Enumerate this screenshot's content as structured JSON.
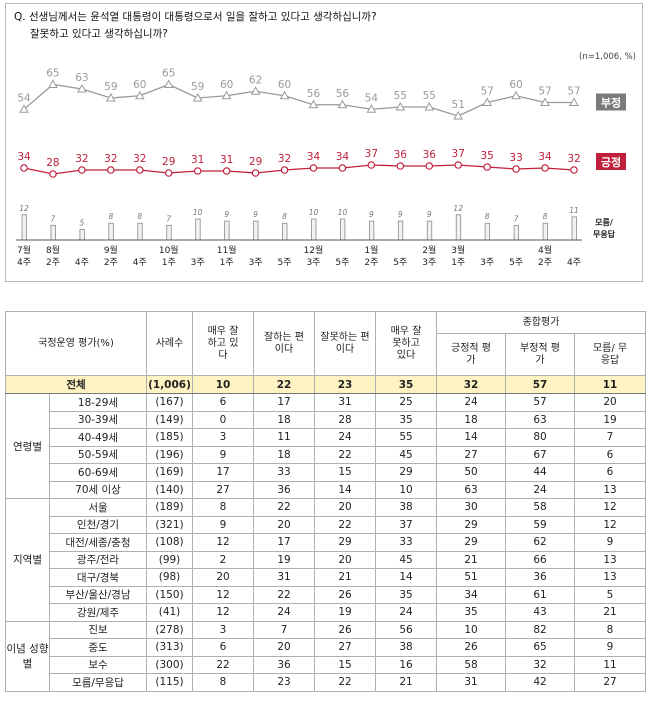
{
  "question": {
    "line1": "Q. 선생님께서는 윤석열 대통령이 대통령으로서 일을 잘하고 있다고 생각하십니까?",
    "line2": "잘못하고 있다고 생각하십니까?"
  },
  "sample_note": "(n=1,006, %)",
  "chart_data": {
    "type": "line",
    "categories": [
      [
        "7월",
        "4주"
      ],
      [
        "8월",
        "2주"
      ],
      [
        "",
        "4주"
      ],
      [
        "9월",
        "2주"
      ],
      [
        "",
        "4주"
      ],
      [
        "10월",
        "1주"
      ],
      [
        "",
        "3주"
      ],
      [
        "11월",
        "1주"
      ],
      [
        "",
        "3주"
      ],
      [
        "",
        "5주"
      ],
      [
        "12월",
        "3주"
      ],
      [
        "",
        "5주"
      ],
      [
        "1월",
        "2주"
      ],
      [
        "",
        "5주"
      ],
      [
        "2월",
        "3주"
      ],
      [
        "3월",
        "1주"
      ],
      [
        "",
        "3주"
      ],
      [
        "",
        "5주"
      ],
      [
        "4월",
        "2주"
      ],
      [
        "",
        "4주"
      ]
    ],
    "series": [
      {
        "name": "부정",
        "color": "#9a9a9a",
        "values": [
          54,
          65,
          63,
          59,
          60,
          65,
          59,
          60,
          62,
          60,
          56,
          56,
          54,
          55,
          55,
          51,
          57,
          60,
          57,
          57
        ]
      },
      {
        "name": "긍정",
        "color": "#c0203b",
        "values": [
          34,
          28,
          32,
          32,
          32,
          29,
          31,
          31,
          29,
          32,
          34,
          34,
          37,
          36,
          36,
          37,
          35,
          33,
          34,
          32
        ]
      },
      {
        "name": "모름/무응답",
        "color": "#999999",
        "values": [
          12,
          7,
          5,
          8,
          8,
          7,
          10,
          9,
          9,
          8,
          10,
          10,
          9,
          9,
          9,
          12,
          8,
          7,
          8,
          11
        ]
      }
    ]
  },
  "table": {
    "headers": {
      "category": "국정운영 평가(%)",
      "sample": "사례수",
      "very_good": "매우 잘하고 있다",
      "good": "잘하는 편이다",
      "bad": "잘못하는 편이다",
      "very_bad": "매우 잘못하고 있다",
      "overall": "종합평가",
      "positive": "긍정적 평가",
      "negative": "부정적 평가",
      "dk": "모름/ 무응답"
    },
    "total": [
      "전체",
      "(1,006)",
      "10",
      "22",
      "23",
      "35",
      "32",
      "57",
      "11"
    ],
    "groups": [
      {
        "name": "연령별",
        "rows": [
          [
            "18-29세",
            "(167)",
            "6",
            "17",
            "31",
            "25",
            "24",
            "57",
            "20"
          ],
          [
            "30-39세",
            "(149)",
            "0",
            "18",
            "28",
            "35",
            "18",
            "63",
            "19"
          ],
          [
            "40-49세",
            "(185)",
            "3",
            "11",
            "24",
            "55",
            "14",
            "80",
            "7"
          ],
          [
            "50-59세",
            "(196)",
            "9",
            "18",
            "22",
            "45",
            "27",
            "67",
            "6"
          ],
          [
            "60-69세",
            "(169)",
            "17",
            "33",
            "15",
            "29",
            "50",
            "44",
            "6"
          ],
          [
            "70세 이상",
            "(140)",
            "27",
            "36",
            "14",
            "10",
            "63",
            "24",
            "13"
          ]
        ]
      },
      {
        "name": "지역별",
        "rows": [
          [
            "서울",
            "(189)",
            "8",
            "22",
            "20",
            "38",
            "30",
            "58",
            "12"
          ],
          [
            "인천/경기",
            "(321)",
            "9",
            "20",
            "22",
            "37",
            "29",
            "59",
            "12"
          ],
          [
            "대전/세종/충청",
            "(108)",
            "12",
            "17",
            "29",
            "33",
            "29",
            "62",
            "9"
          ],
          [
            "광주/전라",
            "(99)",
            "2",
            "19",
            "20",
            "45",
            "21",
            "66",
            "13"
          ],
          [
            "대구/경북",
            "(98)",
            "20",
            "31",
            "21",
            "14",
            "51",
            "36",
            "13"
          ],
          [
            "부산/울산/경남",
            "(150)",
            "12",
            "22",
            "26",
            "35",
            "34",
            "61",
            "5"
          ],
          [
            "강원/제주",
            "(41)",
            "12",
            "24",
            "19",
            "24",
            "35",
            "43",
            "21"
          ]
        ]
      },
      {
        "name": "이념 성향별",
        "rows": [
          [
            "진보",
            "(278)",
            "3",
            "7",
            "26",
            "56",
            "10",
            "82",
            "8"
          ],
          [
            "중도",
            "(313)",
            "6",
            "20",
            "27",
            "38",
            "26",
            "65",
            "9"
          ],
          [
            "보수",
            "(300)",
            "22",
            "36",
            "15",
            "16",
            "58",
            "32",
            "11"
          ],
          [
            "모름/무응답",
            "(115)",
            "8",
            "23",
            "22",
            "21",
            "31",
            "42",
            "27"
          ]
        ]
      }
    ]
  }
}
